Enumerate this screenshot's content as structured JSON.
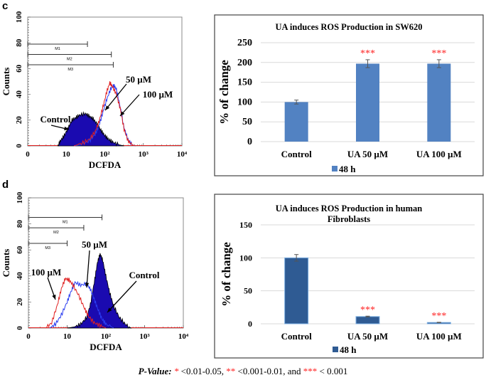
{
  "panels": [
    {
      "label": "c",
      "histogram": {
        "type": "line",
        "ylabel": "Counts",
        "xlabel": "DCFDA",
        "x_scale": "log",
        "xlim_decades": [
          0,
          4
        ],
        "x_ticks": [
          "0",
          "10",
          "10²",
          "10³",
          "10⁴"
        ],
        "ylim": [
          0,
          100
        ],
        "y_ticks": [
          "0",
          "20",
          "40",
          "60",
          "80",
          "100"
        ],
        "gates": [
          {
            "name": "M1",
            "from_decade": 0,
            "to_decade": 1.55,
            "count": 79
          },
          {
            "name": "M2",
            "from_decade": 0,
            "to_decade": 2.17,
            "count": 71
          },
          {
            "name": "M3",
            "from_decade": 0,
            "to_decade": 2.22,
            "count": 63
          }
        ],
        "series": [
          {
            "name": "Control",
            "color": "#1a0ab0",
            "filled": true,
            "points": [
              [
                0.78,
                0
              ],
              [
                0.85,
                4
              ],
              [
                0.95,
                8
              ],
              [
                1.05,
                14
              ],
              [
                1.15,
                20
              ],
              [
                1.25,
                22
              ],
              [
                1.35,
                24
              ],
              [
                1.5,
                25
              ],
              [
                1.6,
                23
              ],
              [
                1.7,
                21
              ],
              [
                1.8,
                17
              ],
              [
                1.9,
                12
              ],
              [
                2.0,
                8
              ],
              [
                2.1,
                5
              ],
              [
                2.2,
                3
              ],
              [
                2.35,
                1
              ],
              [
                2.5,
                0
              ]
            ]
          },
          {
            "name": "50 µM",
            "color": "#2a3cf0",
            "filled": false,
            "points": [
              [
                1.2,
                0
              ],
              [
                1.4,
                1
              ],
              [
                1.6,
                4
              ],
              [
                1.75,
                9
              ],
              [
                1.85,
                16
              ],
              [
                1.95,
                26
              ],
              [
                2.05,
                36
              ],
              [
                2.15,
                44
              ],
              [
                2.23,
                47
              ],
              [
                2.3,
                44
              ],
              [
                2.4,
                30
              ],
              [
                2.5,
                14
              ],
              [
                2.6,
                5
              ],
              [
                2.7,
                1
              ],
              [
                2.8,
                0
              ]
            ]
          },
          {
            "name": "100 µM",
            "color": "#e02020",
            "filled": false,
            "points": [
              [
                1.2,
                0
              ],
              [
                1.4,
                2
              ],
              [
                1.6,
                5
              ],
              [
                1.75,
                11
              ],
              [
                1.85,
                19
              ],
              [
                1.95,
                30
              ],
              [
                2.05,
                42
              ],
              [
                2.13,
                49
              ],
              [
                2.2,
                46
              ],
              [
                2.3,
                40
              ],
              [
                2.4,
                29
              ],
              [
                2.5,
                13
              ],
              [
                2.6,
                4
              ],
              [
                2.7,
                1
              ],
              [
                2.8,
                0
              ]
            ]
          }
        ],
        "annotations": [
          "Control",
          "50 µM",
          "100 µM"
        ]
      },
      "bar": {
        "type": "bar",
        "title": "UA induces ROS Production in SW620",
        "ylabel": "% of change",
        "ylim": [
          0,
          250
        ],
        "y_ticks": [
          "0",
          "50",
          "100",
          "150",
          "200",
          "250"
        ],
        "categories": [
          "Control",
          "UA 50 µM",
          "UA 100 µM"
        ],
        "values": [
          100,
          197,
          197
        ],
        "errors": [
          5,
          10,
          10
        ],
        "significance": [
          "",
          "***",
          "***"
        ],
        "legend": "48 h",
        "bar_color": "#5282c2",
        "sig_color": "#ff2020"
      }
    },
    {
      "label": "d",
      "histogram": {
        "type": "line",
        "ylabel": "Counts",
        "xlabel": "DCFDA",
        "x_scale": "log",
        "xlim_decades": [
          0,
          4
        ],
        "x_ticks": [
          "0",
          "10",
          "10²",
          "10³",
          "10⁴"
        ],
        "ylim": [
          0,
          100
        ],
        "y_ticks": [
          "0",
          "20",
          "40",
          "60",
          "80",
          "100"
        ],
        "gates": [
          {
            "name": "M1",
            "from_decade": 0,
            "to_decade": 1.9,
            "count": 85
          },
          {
            "name": "M2",
            "from_decade": 0,
            "to_decade": 1.43,
            "count": 77
          },
          {
            "name": "M3",
            "from_decade": 0,
            "to_decade": 1.0,
            "count": 65
          }
        ],
        "series": [
          {
            "name": "Control",
            "color": "#1a0ab0",
            "filled": true,
            "points": [
              [
                1.0,
                0
              ],
              [
                1.2,
                1
              ],
              [
                1.35,
                3
              ],
              [
                1.5,
                8
              ],
              [
                1.6,
                18
              ],
              [
                1.7,
                35
              ],
              [
                1.78,
                50
              ],
              [
                1.85,
                57
              ],
              [
                1.92,
                52
              ],
              [
                2.0,
                40
              ],
              [
                2.1,
                27
              ],
              [
                2.2,
                17
              ],
              [
                2.35,
                8
              ],
              [
                2.5,
                3
              ],
              [
                2.65,
                0
              ]
            ]
          },
          {
            "name": "50 µM",
            "color": "#2a3cf0",
            "filled": false,
            "points": [
              [
                0.55,
                0
              ],
              [
                0.7,
                3
              ],
              [
                0.85,
                10
              ],
              [
                1.0,
                20
              ],
              [
                1.1,
                28
              ],
              [
                1.2,
                35
              ],
              [
                1.35,
                33
              ],
              [
                1.5,
                34
              ],
              [
                1.6,
                30
              ],
              [
                1.7,
                22
              ],
              [
                1.8,
                14
              ],
              [
                1.9,
                7
              ],
              [
                2.0,
                3
              ],
              [
                2.2,
                0
              ]
            ]
          },
          {
            "name": "100 µM",
            "color": "#e02020",
            "filled": false,
            "points": [
              [
                0.45,
                0
              ],
              [
                0.6,
                4
              ],
              [
                0.75,
                18
              ],
              [
                0.85,
                30
              ],
              [
                0.95,
                38
              ],
              [
                1.05,
                37
              ],
              [
                1.15,
                33
              ],
              [
                1.3,
                25
              ],
              [
                1.45,
                15
              ],
              [
                1.55,
                9
              ],
              [
                1.7,
                4
              ],
              [
                1.85,
                2
              ],
              [
                2.0,
                0
              ]
            ]
          }
        ],
        "annotations": [
          "100 µM",
          "50 µM",
          "Control"
        ]
      },
      "bar": {
        "type": "bar",
        "title": "UA induces ROS Production in human Fibroblasts",
        "title_lines": [
          "UA induces ROS Production in human",
          "Fibroblasts"
        ],
        "ylabel": "% of change",
        "ylim": [
          0,
          150
        ],
        "y_ticks": [
          "0",
          "50",
          "100",
          "150"
        ],
        "categories": [
          "Control",
          "UA 50 µM",
          "UA 100 µM"
        ],
        "values": [
          100,
          11,
          2
        ],
        "errors": [
          5,
          0.6,
          0.3
        ],
        "significance": [
          "",
          "***",
          "***"
        ],
        "legend": "48 h",
        "bar_color": "#2f5b93",
        "sig_color": "#ff2020"
      }
    }
  ],
  "footer": {
    "prefix": "P-Value:",
    "s1": "*",
    "t1": " <0.01-0.05, ",
    "s2": "**",
    "t2": " <0.001-0.01, and ",
    "s3": "***",
    "t3": " < 0.001"
  }
}
